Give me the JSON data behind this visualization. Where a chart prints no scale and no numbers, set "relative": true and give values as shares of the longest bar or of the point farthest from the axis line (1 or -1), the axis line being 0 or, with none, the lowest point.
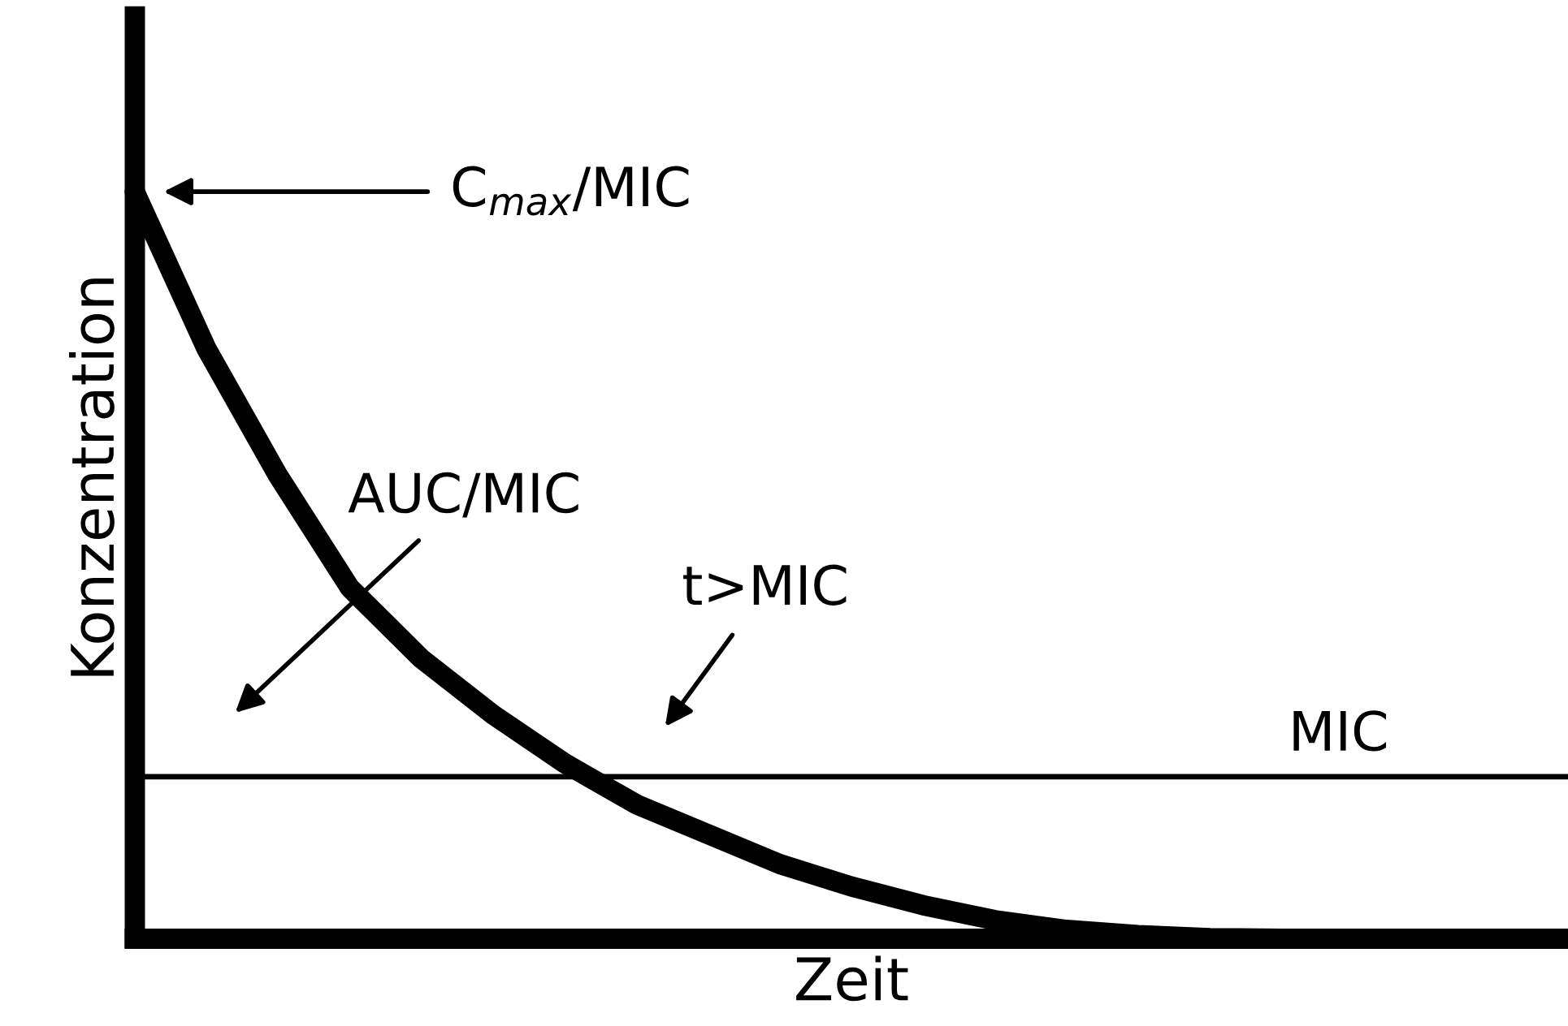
{
  "chart_data": {
    "type": "line",
    "relative": true,
    "xlabel": "Zeit",
    "ylabel": "Konzentration",
    "categories": [
      null,
      null,
      null,
      null,
      null,
      null,
      null,
      null,
      null,
      null,
      null,
      null,
      null,
      null,
      null,
      null,
      null,
      null,
      null,
      null,
      null
    ],
    "series": [
      {
        "color": "#000000",
        "values": [
          1.0,
          0.79,
          0.62,
          0.47,
          0.375,
          0.3,
          0.235,
          0.18,
          0.14,
          0.1,
          0.07,
          0.045,
          0.025,
          0.012,
          0.005,
          0.001,
          0.0,
          0.0,
          0.0,
          0.0,
          0.0
        ]
      }
    ],
    "ref_lines": [
      {
        "axis": "y",
        "value": 0.217,
        "label": "MIC",
        "color": "#000000",
        "line_style": "solid"
      }
    ],
    "annotations": [
      "C$_{max}$/MIC",
      "AUC/MIC",
      "t>MIC"
    ]
  }
}
